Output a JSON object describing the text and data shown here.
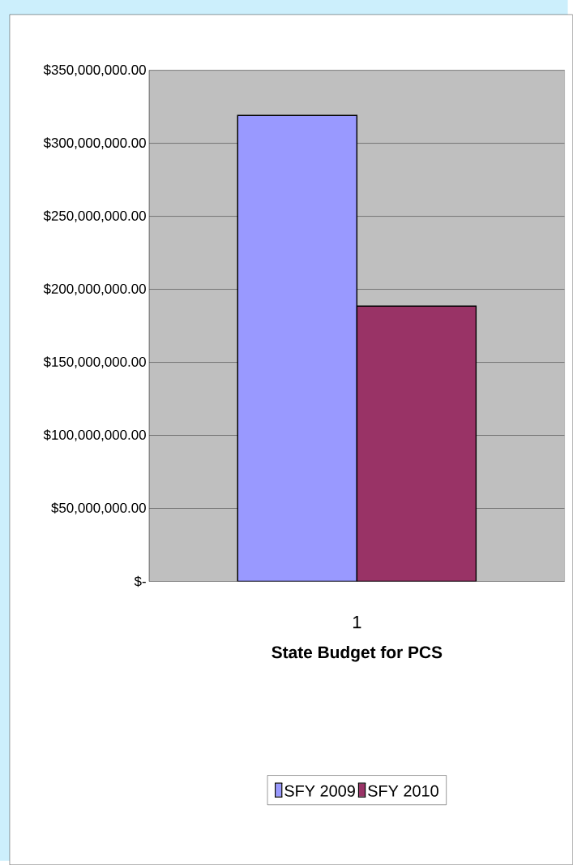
{
  "chart_data": {
    "type": "bar",
    "xlabel": "State Budget for PCS",
    "categories": [
      "1"
    ],
    "series": [
      {
        "name": "SFY 2009",
        "color": "#9999ff",
        "values": [
          319000000
        ]
      },
      {
        "name": "SFY 2010",
        "color": "#993366",
        "values": [
          188500000
        ]
      }
    ],
    "ylim": [
      0,
      350000000
    ],
    "yticks": [
      {
        "value": 0,
        "label": "$-"
      },
      {
        "value": 50000000,
        "label": "$50,000,000.00"
      },
      {
        "value": 100000000,
        "label": "$100,000,000.00"
      },
      {
        "value": 150000000,
        "label": "$150,000,000.00"
      },
      {
        "value": 200000000,
        "label": "$200,000,000.00"
      },
      {
        "value": 250000000,
        "label": "$250,000,000.00"
      },
      {
        "value": 300000000,
        "label": "$300,000,000.00"
      },
      {
        "value": 350000000,
        "label": "$350,000,000.00"
      }
    ],
    "grid": "y",
    "legend": "bottom"
  }
}
